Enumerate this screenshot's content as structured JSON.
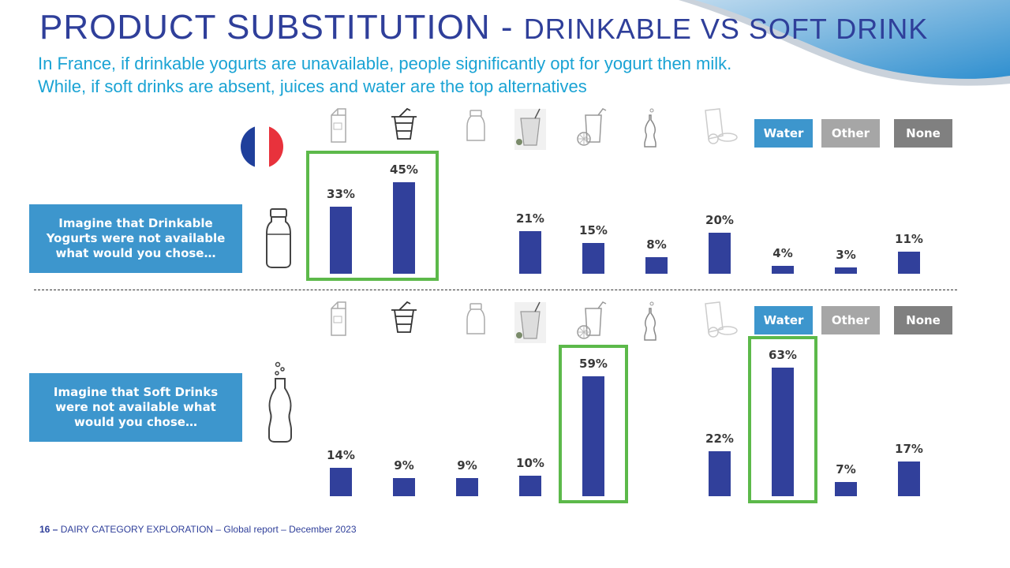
{
  "title": {
    "main": "PRODUCT SUBSTITUTION - ",
    "sub": "DRINKABLE VS SOFT DRINK"
  },
  "subtitle": "In France, if drinkable yogurts are unavailable, people significantly opt for yogurt then milk. While, if soft drinks are absent, juices and water are the top alternatives",
  "colors": {
    "bar": "#31409b",
    "highlight": "#5cb94a",
    "question_box": "#3d96cd",
    "title": "#2f3f9a",
    "subtitle": "#1aa3d4"
  },
  "options_icons": [
    "milk-carton-icon",
    "yogurt-cup-icon",
    "drinkable-yogurt-icon",
    "smoothie-icon",
    "juice-icon",
    "soft-drink-icon",
    "breakfast-cereal-icon"
  ],
  "tags": {
    "water": "Water",
    "other": "Other",
    "none": "None"
  },
  "questions": {
    "drinkable_yogurt": "Imagine that Drinkable Yogurts were not available what would you  chose…",
    "soft_drink": "Imagine that Soft Drinks were not available what would you chose…"
  },
  "chart_data": [
    {
      "type": "bar",
      "title": "Imagine that Drinkable Yogurts were not available what would you  chose…",
      "values": [
        33,
        45,
        21,
        15,
        8,
        20,
        4,
        3,
        11
      ],
      "labels": [
        "33%",
        "45%",
        "21%",
        "15%",
        "8%",
        "20%",
        "4%",
        "3%",
        "11%"
      ],
      "x_slots": [
        0,
        1,
        3,
        4,
        5,
        6,
        7,
        8,
        9
      ],
      "highlighted_slots": [
        [
          0,
          1
        ]
      ],
      "ylim": [
        0,
        70
      ]
    },
    {
      "type": "bar",
      "title": "Imagine that Soft Drinks were not available what would you chose…",
      "values": [
        14,
        9,
        9,
        10,
        59,
        22,
        63,
        7,
        17
      ],
      "labels": [
        "14%",
        "9%",
        "9%",
        "10%",
        "59%",
        "22%",
        "63%",
        "7%",
        "17%"
      ],
      "x_slots": [
        0,
        1,
        2,
        3,
        4,
        6,
        7,
        8,
        9
      ],
      "highlighted_slots": [
        [
          4,
          4
        ],
        [
          7,
          7
        ]
      ],
      "ylim": [
        0,
        70
      ]
    }
  ],
  "footer": {
    "page": "16 –",
    "text": "DAIRY CATEGORY EXPLORATION – Global report – December 2023"
  }
}
